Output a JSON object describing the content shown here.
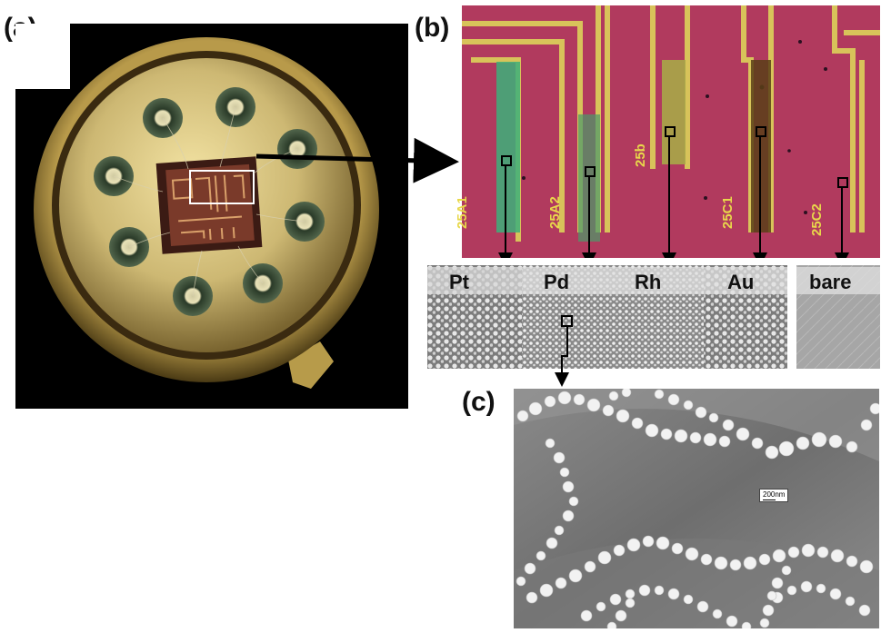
{
  "panels": {
    "a": {
      "label": "(a)"
    },
    "b": {
      "label": "(b)"
    },
    "c": {
      "label": "(c)"
    }
  },
  "chip_labels": [
    "25A1",
    "25A2",
    "25b",
    "25C1",
    "25C2"
  ],
  "metal_tiles": [
    {
      "label": "Pt"
    },
    {
      "label": "Pd"
    },
    {
      "label": "Rh"
    },
    {
      "label": "Au"
    },
    {
      "label": "bare"
    }
  ],
  "scale_bar": {
    "label": "200nm"
  },
  "colors": {
    "substrate_magenta": "#b13a5e",
    "gold_trace": "#d8c35a",
    "package_gold": "#cdb873",
    "pad_green": "#2d3a2a",
    "sem_gray": "#8a8a8a"
  }
}
